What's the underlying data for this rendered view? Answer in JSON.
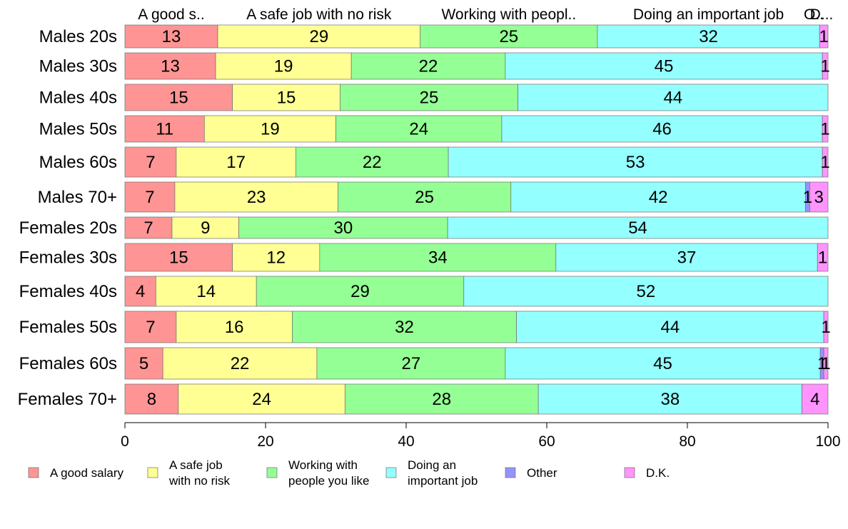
{
  "chart_data": {
    "type": "bar",
    "orientation": "horizontal",
    "stacked": true,
    "categories": [
      "Males 20s",
      "Males 30s",
      "Males 40s",
      "Males 50s",
      "Males 60s",
      "Males 70+",
      "Females 20s",
      "Females 30s",
      "Females 40s",
      "Females 50s",
      "Females 60s",
      "Females 70+"
    ],
    "top_labels": [
      "A good s..",
      "A safe job with no risk",
      "Working with peopl..",
      "Doing an important job",
      "O..",
      "D..."
    ],
    "series": [
      {
        "name": "A good salary",
        "legend_lines": [
          "A good salary"
        ],
        "color": "#ff9494",
        "values": [
          13.2,
          12.9,
          15.3,
          11.3,
          7.3,
          7.1,
          6.7,
          15.3,
          4.4,
          7.3,
          5.4,
          7.6
        ]
      },
      {
        "name": "A safe job with no risk",
        "legend_lines": [
          "A safe job",
          "with no risk"
        ],
        "color": "#ffff94",
        "values": [
          28.8,
          19.3,
          15.3,
          18.7,
          17.0,
          23.2,
          9.5,
          12.4,
          14.3,
          16.5,
          21.9,
          23.7
        ]
      },
      {
        "name": "Working with people you like",
        "legend_lines": [
          "Working with",
          "people you like"
        ],
        "color": "#94ff94",
        "values": [
          25.2,
          21.9,
          25.3,
          23.6,
          21.7,
          24.6,
          29.7,
          33.6,
          29.5,
          31.9,
          26.8,
          27.5
        ]
      },
      {
        "name": "Doing an important job",
        "legend_lines": [
          "Doing an",
          "important job"
        ],
        "color": "#94ffff",
        "values": [
          31.6,
          45.1,
          44.1,
          45.6,
          53.2,
          41.9,
          54.1,
          37.2,
          51.8,
          43.7,
          44.8,
          37.5
        ]
      },
      {
        "name": "Other",
        "legend_lines": [
          "Other"
        ],
        "color": "#9494ff",
        "values": [
          0,
          0,
          0,
          0,
          0,
          0.6,
          0,
          0,
          0,
          0,
          0.5,
          0
        ]
      },
      {
        "name": "D.K.",
        "legend_lines": [
          "D.K."
        ],
        "color": "#ff94ff",
        "values": [
          1.2,
          0.8,
          0,
          0.8,
          0.8,
          2.6,
          0,
          1.5,
          0,
          0.6,
          0.6,
          3.7
        ]
      }
    ],
    "data_labels": [
      [
        "13",
        "29",
        "25",
        "32",
        "",
        "1"
      ],
      [
        "13",
        "19",
        "22",
        "45",
        "",
        "1"
      ],
      [
        "15",
        "15",
        "25",
        "44",
        "",
        ""
      ],
      [
        "11",
        "19",
        "24",
        "46",
        "",
        "1"
      ],
      [
        "7",
        "17",
        "22",
        "53",
        "",
        "1"
      ],
      [
        "7",
        "23",
        "25",
        "42",
        "1",
        "3"
      ],
      [
        "7",
        "9",
        "30",
        "54",
        "",
        ""
      ],
      [
        "15",
        "12",
        "34",
        "37",
        "",
        "1"
      ],
      [
        "4",
        "14",
        "29",
        "52",
        "",
        ""
      ],
      [
        "7",
        "16",
        "32",
        "44",
        "",
        "1"
      ],
      [
        "5",
        "22",
        "27",
        "45",
        "1",
        "1"
      ],
      [
        "8",
        "24",
        "28",
        "38",
        "",
        "4"
      ]
    ],
    "x_ticks": [
      "0",
      "20",
      "40",
      "60",
      "80",
      "100"
    ],
    "xlim": [
      0,
      100
    ],
    "grid": false,
    "legend_position": "bottom"
  }
}
